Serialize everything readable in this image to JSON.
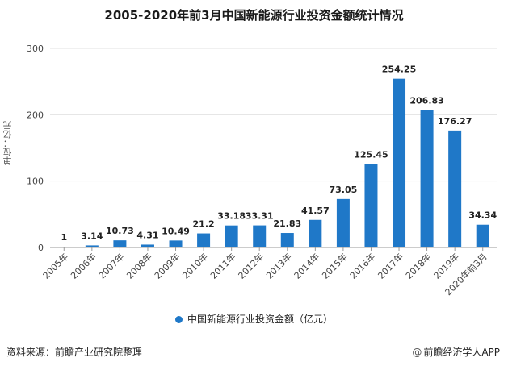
{
  "chart_data": {
    "type": "bar",
    "title": "2005-2020年前3月中国新能源行业投资金额统计情况",
    "ylabel": "单位：亿元",
    "ylim": [
      0,
      300
    ],
    "yticks": [
      0,
      100,
      200,
      300
    ],
    "grid": true,
    "categories": [
      "2005年",
      "2006年",
      "2007年",
      "2008年",
      "2009年",
      "2010年",
      "2011年",
      "2012年",
      "2013年",
      "2014年",
      "2015年",
      "2016年",
      "2017年",
      "2018年",
      "2019年",
      "2020年前3月"
    ],
    "series": [
      {
        "name": "中国新能源行业投资金额（亿元）",
        "values": [
          1,
          3.14,
          10.73,
          4.31,
          10.49,
          21.2,
          33.18,
          33.31,
          21.83,
          41.57,
          73.05,
          125.45,
          254.25,
          206.83,
          176.27,
          34.34
        ],
        "color": "#1f78c8"
      }
    ],
    "legend_position": "bottom"
  },
  "footer": {
    "source": "资料来源：前瞻产业研究院整理",
    "brand_at": "@",
    "brand": "前瞻经济学人APP"
  }
}
